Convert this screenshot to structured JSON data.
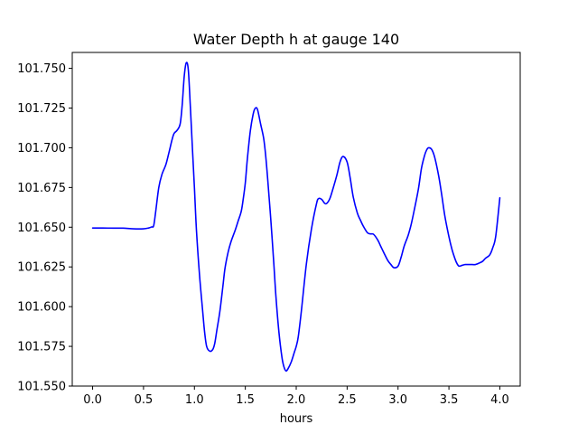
{
  "chart_data": {
    "type": "line",
    "title": "Water Depth h at gauge 140",
    "xlabel": "hours",
    "ylabel": "",
    "xlim": [
      -0.2,
      4.2
    ],
    "ylim": [
      101.55,
      101.76
    ],
    "grid": false,
    "x_ticks": [
      {
        "value": 0.0,
        "label": "0.0"
      },
      {
        "value": 0.5,
        "label": "0.5"
      },
      {
        "value": 1.0,
        "label": "1.0"
      },
      {
        "value": 1.5,
        "label": "1.5"
      },
      {
        "value": 2.0,
        "label": "2.0"
      },
      {
        "value": 2.5,
        "label": "2.5"
      },
      {
        "value": 3.0,
        "label": "3.0"
      },
      {
        "value": 3.5,
        "label": "3.5"
      },
      {
        "value": 4.0,
        "label": "4.0"
      }
    ],
    "y_ticks": [
      {
        "value": 101.55,
        "label": "101.550"
      },
      {
        "value": 101.575,
        "label": "101.575"
      },
      {
        "value": 101.6,
        "label": "101.600"
      },
      {
        "value": 101.625,
        "label": "101.625"
      },
      {
        "value": 101.65,
        "label": "101.650"
      },
      {
        "value": 101.675,
        "label": "101.675"
      },
      {
        "value": 101.7,
        "label": "101.700"
      },
      {
        "value": 101.725,
        "label": "101.725"
      },
      {
        "value": 101.75,
        "label": "101.750"
      }
    ],
    "series": [
      {
        "color": "#0000ff",
        "x": [
          0.0,
          0.1,
          0.2,
          0.3,
          0.4,
          0.5,
          0.55,
          0.58,
          0.6,
          0.62,
          0.65,
          0.68,
          0.72,
          0.75,
          0.78,
          0.8,
          0.83,
          0.86,
          0.88,
          0.9,
          0.92,
          0.94,
          0.96,
          0.98,
          1.0,
          1.02,
          1.05,
          1.08,
          1.1,
          1.12,
          1.15,
          1.18,
          1.2,
          1.22,
          1.25,
          1.28,
          1.3,
          1.33,
          1.36,
          1.4,
          1.43,
          1.46,
          1.48,
          1.5,
          1.52,
          1.55,
          1.58,
          1.6,
          1.62,
          1.65,
          1.68,
          1.7,
          1.72,
          1.75,
          1.78,
          1.8,
          1.83,
          1.86,
          1.88,
          1.9,
          1.92,
          1.95,
          1.98,
          2.0,
          2.02,
          2.05,
          2.1,
          2.15,
          2.2,
          2.22,
          2.25,
          2.28,
          2.3,
          2.33,
          2.36,
          2.4,
          2.43,
          2.46,
          2.5,
          2.53,
          2.56,
          2.6,
          2.63,
          2.66,
          2.7,
          2.73,
          2.76,
          2.8,
          2.83,
          2.86,
          2.9,
          2.93,
          2.96,
          3.0,
          3.03,
          3.06,
          3.1,
          3.13,
          3.16,
          3.2,
          3.23,
          3.26,
          3.28,
          3.3,
          3.33,
          3.36,
          3.4,
          3.43,
          3.46,
          3.5,
          3.53,
          3.56,
          3.58,
          3.6,
          3.63,
          3.66,
          3.7,
          3.73,
          3.76,
          3.8,
          3.83,
          3.86,
          3.9,
          3.93,
          3.96,
          4.0
        ],
        "y": [
          101.6495,
          101.6495,
          101.6494,
          101.6494,
          101.649,
          101.649,
          101.6495,
          101.6502,
          101.651,
          101.66,
          101.675,
          101.683,
          101.6895,
          101.697,
          101.705,
          101.709,
          101.711,
          101.715,
          101.727,
          101.745,
          101.7535,
          101.749,
          101.726,
          101.7,
          101.675,
          101.648,
          101.62,
          101.598,
          101.584,
          101.575,
          101.572,
          101.573,
          101.577,
          101.585,
          101.597,
          101.613,
          101.624,
          101.634,
          101.641,
          101.648,
          101.654,
          101.66,
          101.668,
          101.678,
          101.693,
          101.711,
          101.722,
          101.725,
          101.724,
          101.715,
          101.706,
          101.695,
          101.68,
          101.655,
          101.627,
          101.607,
          101.584,
          101.568,
          101.562,
          101.5595,
          101.561,
          101.565,
          101.571,
          101.575,
          101.581,
          101.597,
          101.627,
          101.649,
          101.665,
          101.668,
          101.6675,
          101.665,
          101.665,
          101.668,
          101.674,
          101.683,
          101.691,
          101.6945,
          101.691,
          101.681,
          101.669,
          101.659,
          101.6545,
          101.6505,
          101.6465,
          101.6458,
          101.6455,
          101.642,
          101.638,
          101.634,
          101.629,
          101.6265,
          101.6245,
          101.6255,
          101.631,
          101.638,
          101.645,
          101.652,
          101.661,
          101.674,
          101.687,
          101.695,
          101.6985,
          101.7,
          101.699,
          101.694,
          101.682,
          101.67,
          101.657,
          101.644,
          101.636,
          101.63,
          101.627,
          101.6255,
          101.626,
          101.6265,
          101.6265,
          101.6265,
          101.6265,
          101.6275,
          101.6285,
          101.6305,
          101.6325,
          101.637,
          101.6445,
          101.6685
        ]
      }
    ]
  }
}
